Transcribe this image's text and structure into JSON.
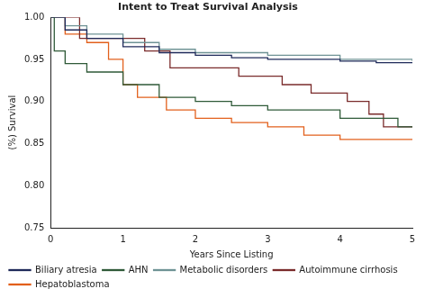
{
  "chart_data": {
    "type": "line",
    "line_style": "steps",
    "title": "Intent to Treat Survival Analysis",
    "x_label": "Years Since Listing",
    "y_label": "(%) Survival",
    "xlim": [
      0,
      5
    ],
    "xticks": [
      0,
      1,
      2,
      3,
      4,
      5
    ],
    "ylim": [
      0.75,
      1.0
    ],
    "yticks": [
      {
        "value": 0.75,
        "label": "0.75"
      },
      {
        "value": 0.8,
        "label": "0.80"
      },
      {
        "value": 0.85,
        "label": "0.85"
      },
      {
        "value": 0.9,
        "label": "0.90"
      },
      {
        "value": 0.95,
        "label": "0.95"
      },
      {
        "value": 1.0,
        "label": "1.00"
      }
    ],
    "grid": false,
    "legend": "bottom",
    "series": [
      {
        "name": "Biliary atresia",
        "color": "#1f2a5a",
        "x": [
          0,
          0.2,
          0.5,
          1.0,
          1.5,
          2.0,
          2.5,
          3.0,
          4.0,
          4.5,
          5.0
        ],
        "values": [
          1.0,
          0.985,
          0.975,
          0.965,
          0.958,
          0.955,
          0.952,
          0.95,
          0.948,
          0.946,
          0.946
        ]
      },
      {
        "name": "AHN",
        "color": "#2f5a38",
        "x": [
          0,
          0.05,
          0.2,
          0.5,
          1.0,
          1.5,
          2.0,
          2.5,
          3.0,
          4.0,
          4.8,
          5.0
        ],
        "values": [
          1.0,
          0.96,
          0.945,
          0.935,
          0.92,
          0.905,
          0.9,
          0.895,
          0.89,
          0.88,
          0.87,
          0.87
        ]
      },
      {
        "name": "Metabolic disorders",
        "color": "#6f9395",
        "x": [
          0,
          0.2,
          0.5,
          1.0,
          1.5,
          2.0,
          3.0,
          4.0,
          5.0
        ],
        "values": [
          1.0,
          0.99,
          0.98,
          0.97,
          0.962,
          0.958,
          0.955,
          0.95,
          0.948
        ]
      },
      {
        "name": "Autoimmune cirrhosis",
        "color": "#7a2b2b",
        "x": [
          0,
          0.4,
          1.2,
          1.3,
          1.6,
          1.65,
          2.5,
          2.6,
          3.2,
          3.6,
          4.1,
          4.4,
          4.6,
          5.0
        ],
        "values": [
          1.0,
          0.975,
          0.975,
          0.96,
          0.96,
          0.94,
          0.94,
          0.93,
          0.92,
          0.91,
          0.9,
          0.885,
          0.87,
          0.87
        ]
      },
      {
        "name": "Hepatoblastoma",
        "color": "#e2601c",
        "x": [
          0,
          0.2,
          0.5,
          0.8,
          1.0,
          1.2,
          1.6,
          2.0,
          2.5,
          3.0,
          3.5,
          4.0,
          5.0
        ],
        "values": [
          1.0,
          0.98,
          0.97,
          0.95,
          0.92,
          0.905,
          0.89,
          0.88,
          0.875,
          0.87,
          0.86,
          0.855,
          0.855
        ]
      }
    ]
  }
}
